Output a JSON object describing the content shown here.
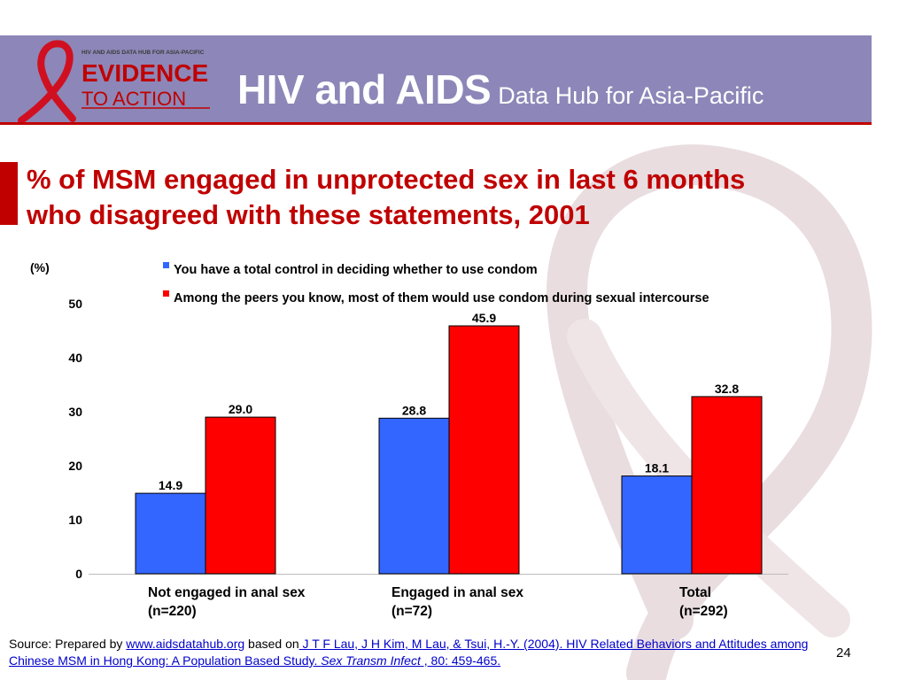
{
  "header": {
    "logo_small_text": "HIV AND AIDS DATA HUB FOR ASIA-PACIFIC",
    "logo_line1": "EVIDENCE",
    "logo_line2": "TO ACTION",
    "title_main": "HIV and AIDS",
    "title_sub": "Data Hub for Asia-Pacific"
  },
  "slide": {
    "title_line1": "% of MSM engaged in unprotected sex in last 6 months",
    "title_line2": "who disagreed with these statements, 2001"
  },
  "chart_data": {
    "type": "bar",
    "ylabel": "(%)",
    "ylim": [
      0,
      50
    ],
    "yticks": [
      0,
      10,
      20,
      30,
      40,
      50
    ],
    "grid": false,
    "legend_position": "top",
    "categories": [
      [
        "Not engaged in anal sex",
        "(n=220)"
      ],
      [
        "Engaged in anal sex",
        "(n=72)"
      ],
      [
        "Total",
        "(n=292)"
      ]
    ],
    "series": [
      {
        "name": "You have a total control in deciding whether to use condom",
        "color": "#3366ff",
        "values": [
          14.9,
          28.8,
          18.1
        ],
        "labels": [
          "14.9",
          "28.8",
          "18.1"
        ]
      },
      {
        "name": "Among the peers you know, most of them would use condom during sexual intercourse",
        "color": "#ff0000",
        "values": [
          29.0,
          45.9,
          32.8
        ],
        "labels": [
          "29.0",
          "45.9",
          "32.8"
        ]
      }
    ]
  },
  "source": {
    "prefix": "Source: Prepared by ",
    "link1": "www.aidsdatahub.org",
    "mid": " based on",
    "citation_part1": " J T F Lau, J H Kim, M Lau, & Tsui, H.-Y. (2004). HIV Related Behaviors and Attitudes among Chinese MSM in Hong Kong: A Population Based Study. ",
    "journal": "Sex Transm Infect",
    "citation_part2": " , 80: 459-465."
  },
  "page_number": "24",
  "colors": {
    "header": "#8c87b8",
    "accent": "#c00000"
  }
}
